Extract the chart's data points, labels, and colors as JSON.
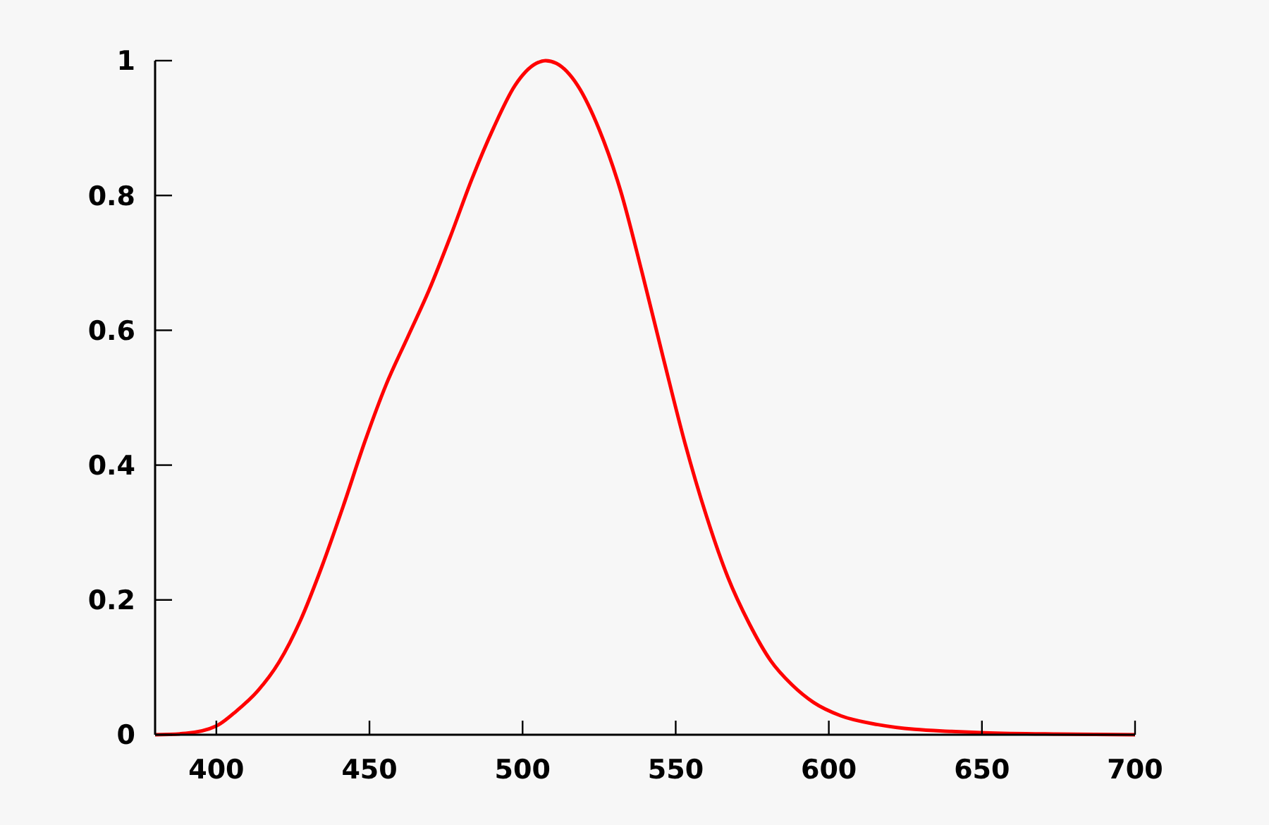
{
  "chart_data": {
    "type": "line",
    "xlim": [
      380,
      700
    ],
    "ylim": [
      0,
      1
    ],
    "xticks": [
      400,
      450,
      500,
      550,
      600,
      650,
      700
    ],
    "yticks": [
      0,
      0.2,
      0.4,
      0.6,
      0.8,
      1
    ],
    "grid": false,
    "series": [
      {
        "color": "#ff0000",
        "x": [
          380,
          390,
          400,
          406.5,
          413.5,
          420.5,
          427.5,
          434.5,
          441.5,
          448.5,
          455.5,
          462.5,
          469.5,
          476.5,
          483.5,
          490.5,
          497.5,
          504.5,
          507.5,
          511,
          518,
          525,
          532,
          539,
          546,
          553,
          560,
          567,
          574,
          581,
          588,
          595,
          604,
          616,
          628,
          640,
          651,
          674,
          700
        ],
        "values": [
          0,
          0.002,
          0.013,
          0.035,
          0.065,
          0.108,
          0.17,
          0.25,
          0.34,
          0.435,
          0.52,
          0.59,
          0.66,
          0.74,
          0.825,
          0.9,
          0.963,
          0.996,
          1,
          0.996,
          0.963,
          0.898,
          0.807,
          0.686,
          0.558,
          0.433,
          0.325,
          0.234,
          0.165,
          0.11,
          0.074,
          0.048,
          0.028,
          0.015,
          0.008,
          0.005,
          0.003,
          0.001,
          0
        ]
      }
    ]
  }
}
